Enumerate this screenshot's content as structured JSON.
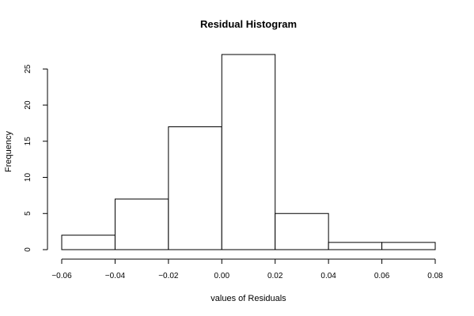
{
  "chart_data": {
    "type": "bar",
    "title": "Residual Histogram",
    "xlabel": "values of Residuals",
    "ylabel": "Frequency",
    "bin_edges": [
      -0.06,
      -0.04,
      -0.02,
      0.0,
      0.02,
      0.04,
      0.06,
      0.08
    ],
    "values": [
      2,
      7,
      17,
      27,
      5,
      1,
      1
    ],
    "xlim": [
      -0.06,
      0.08
    ],
    "ylim": [
      0,
      27
    ],
    "x_ticks": [
      -0.06,
      -0.04,
      -0.02,
      0.0,
      0.02,
      0.04,
      0.06,
      0.08
    ],
    "x_tick_labels": [
      "−0.06",
      "−0.04",
      "−0.02",
      "0.00",
      "0.02",
      "0.04",
      "0.06",
      "0.08"
    ],
    "y_ticks": [
      0,
      5,
      10,
      15,
      20,
      25
    ],
    "y_tick_labels": [
      "0",
      "5",
      "10",
      "15",
      "20",
      "25"
    ],
    "grid": false,
    "colors": {
      "bar_fill": "#ffffff",
      "bar_stroke": "#000000",
      "background": "#ffffff"
    }
  }
}
